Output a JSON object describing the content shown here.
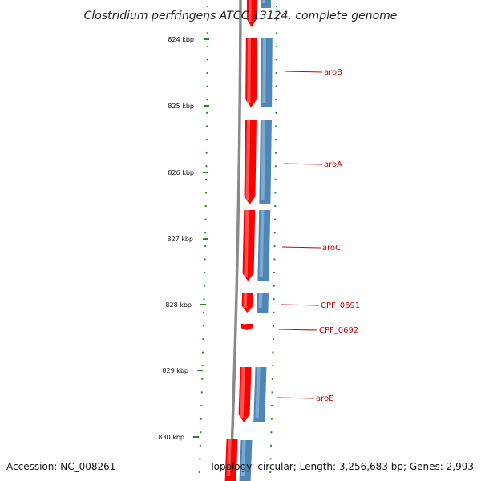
{
  "title": "Clostridium perfringens ATCC 13124, complete genome",
  "footer": {
    "accession": "Accession: NC_008261",
    "summary": "Topology: circular; Length: 3,256,683 bp; Genes: 2,993"
  },
  "colors": {
    "forward_strand": "#ff0000",
    "reverse_strand": "#4f86b8",
    "backbone": "#8a8a8a",
    "tick": "#1f8c1f",
    "gene_label": "#cc0000"
  },
  "ticks": [
    {
      "label": "824 kbp"
    },
    {
      "label": "825 kbp"
    },
    {
      "label": "826 kbp"
    },
    {
      "label": "827 kbp"
    },
    {
      "label": "828 kbp"
    },
    {
      "label": "829 kbp"
    },
    {
      "label": "830 kbp"
    }
  ],
  "genes": [
    {
      "name": "aroB",
      "strands": [
        "forward",
        "reverse"
      ]
    },
    {
      "name": "aroA",
      "strands": [
        "forward",
        "reverse"
      ]
    },
    {
      "name": "aroC",
      "strands": [
        "forward",
        "reverse"
      ]
    },
    {
      "name": "CPF_0691",
      "strands": [
        "forward",
        "reverse"
      ]
    },
    {
      "name": "CPF_0692",
      "strands": [
        "forward"
      ]
    },
    {
      "name": "aroE",
      "strands": [
        "forward",
        "reverse"
      ]
    }
  ]
}
